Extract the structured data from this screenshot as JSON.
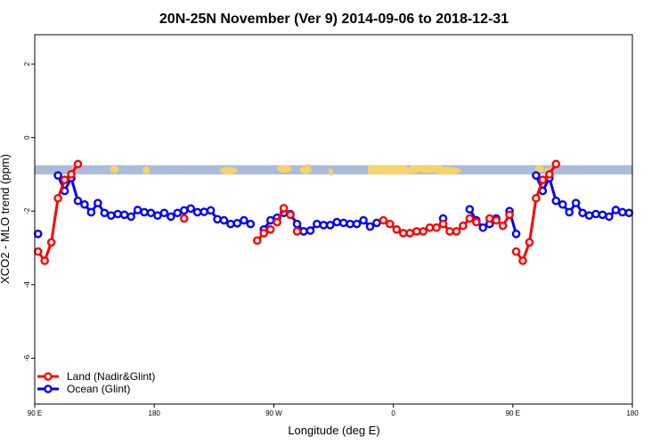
{
  "chart_data": {
    "type": "line",
    "title": "20N-25N November (Ver 9)   2014-09-06 to 2018-12-31",
    "xlabel": "Longitude (deg E)",
    "ylabel": "XCO2 - MLO trend (ppm)",
    "xlim": [
      90,
      540
    ],
    "ylim": [
      -7.25,
      2.8
    ],
    "x_ticks": [
      {
        "value": 90,
        "label": "90 E"
      },
      {
        "value": 180,
        "label": "180"
      },
      {
        "value": 270,
        "label": "90 W"
      },
      {
        "value": 360,
        "label": "0"
      },
      {
        "value": 450,
        "label": "90 E"
      },
      {
        "value": 540,
        "label": "180"
      }
    ],
    "y_ticks": [
      {
        "value": 2,
        "label": "2"
      },
      {
        "value": 0,
        "label": "0"
      },
      {
        "value": -2,
        "label": "-2"
      },
      {
        "value": -4,
        "label": "-4"
      },
      {
        "value": -6,
        "label": "-6"
      }
    ],
    "map_band": {
      "ymin": -1.0,
      "ymax": -0.75,
      "ocean_color": "#a9bcd9",
      "land_color": "#f6d36b"
    },
    "legend_position": "bottom-left",
    "series": [
      {
        "name": "Land (Nadir&Glint)",
        "color": "#ff0000",
        "segments": [
          [
            [
              92.5,
              -3.1
            ],
            [
              97.5,
              -3.35
            ],
            [
              102.5,
              -2.85
            ],
            [
              107.5,
              -1.65
            ],
            [
              112.5,
              -1.15
            ],
            [
              117.5,
              -1.0
            ],
            [
              122.5,
              -0.72
            ]
          ],
          [
            [
              202.5,
              -2.2
            ]
          ],
          [
            [
              257.5,
              -2.8
            ],
            [
              262.5,
              -2.6
            ],
            [
              267.5,
              -2.5
            ]
          ],
          [
            [
              272.5,
              -2.3
            ],
            [
              277.5,
              -1.92
            ],
            [
              282.5,
              -2.1
            ]
          ],
          [
            [
              287.5,
              -2.55
            ]
          ],
          [
            [
              352.5,
              -2.25
            ],
            [
              357.5,
              -2.35
            ],
            [
              362.5,
              -2.5
            ],
            [
              367.5,
              -2.6
            ],
            [
              372.5,
              -2.6
            ],
            [
              377.5,
              -2.55
            ],
            [
              382.5,
              -2.55
            ],
            [
              387.5,
              -2.45
            ],
            [
              392.5,
              -2.45
            ],
            [
              397.5,
              -2.35
            ],
            [
              402.5,
              -2.55
            ],
            [
              407.5,
              -2.55
            ],
            [
              412.5,
              -2.4
            ],
            [
              417.5,
              -2.2
            ]
          ],
          [
            [
              422.5,
              -2.3
            ]
          ],
          [
            [
              432.5,
              -2.2
            ],
            [
              437.5,
              -2.25
            ],
            [
              442.5,
              -2.4
            ],
            [
              447.5,
              -2.1
            ]
          ],
          [
            [
              452.5,
              -3.1
            ],
            [
              457.5,
              -3.35
            ],
            [
              462.5,
              -2.85
            ],
            [
              467.5,
              -1.65
            ],
            [
              472.5,
              -1.15
            ],
            [
              477.5,
              -1.0
            ],
            [
              482.5,
              -0.72
            ]
          ]
        ]
      },
      {
        "name": "Ocean (Glint)",
        "color": "#0000ff",
        "segments": [
          [
            [
              92.5,
              -2.62
            ]
          ],
          [
            [
              107.5,
              -1.03
            ],
            [
              112.5,
              -1.45
            ],
            [
              117.5,
              -1.1
            ],
            [
              122.5,
              -1.72
            ],
            [
              127.5,
              -1.82
            ],
            [
              132.5,
              -2.03
            ],
            [
              137.5,
              -1.78
            ],
            [
              142.5,
              -2.05
            ],
            [
              147.5,
              -2.12
            ],
            [
              152.5,
              -2.08
            ],
            [
              157.5,
              -2.1
            ],
            [
              162.5,
              -2.15
            ],
            [
              167.5,
              -1.97
            ],
            [
              172.5,
              -2.03
            ],
            [
              177.5,
              -2.05
            ],
            [
              182.5,
              -2.12
            ],
            [
              187.5,
              -2.05
            ],
            [
              192.5,
              -2.15
            ],
            [
              197.5,
              -2.05
            ],
            [
              202.5,
              -1.98
            ],
            [
              207.5,
              -1.93
            ],
            [
              212.5,
              -2.03
            ],
            [
              217.5,
              -2.02
            ],
            [
              222.5,
              -1.98
            ],
            [
              227.5,
              -2.22
            ],
            [
              232.5,
              -2.25
            ],
            [
              237.5,
              -2.35
            ],
            [
              242.5,
              -2.33
            ],
            [
              247.5,
              -2.25
            ],
            [
              252.5,
              -2.35
            ]
          ],
          [
            [
              262.5,
              -2.5
            ],
            [
              267.5,
              -2.25
            ],
            [
              272.5,
              -2.18
            ],
            [
              277.5,
              -2.05
            ],
            [
              282.5,
              -2.08
            ],
            [
              287.5,
              -2.35
            ],
            [
              292.5,
              -2.55
            ],
            [
              297.5,
              -2.53
            ],
            [
              302.5,
              -2.35
            ],
            [
              307.5,
              -2.38
            ],
            [
              312.5,
              -2.38
            ],
            [
              317.5,
              -2.3
            ],
            [
              322.5,
              -2.32
            ],
            [
              327.5,
              -2.35
            ],
            [
              332.5,
              -2.35
            ],
            [
              337.5,
              -2.25
            ],
            [
              342.5,
              -2.42
            ],
            [
              347.5,
              -2.32
            ]
          ],
          [
            [
              397.5,
              -2.2
            ]
          ],
          [
            [
              417.5,
              -1.95
            ],
            [
              422.5,
              -2.25
            ],
            [
              427.5,
              -2.45
            ],
            [
              432.5,
              -2.35
            ],
            [
              437.5,
              -2.2
            ]
          ],
          [
            [
              447.5,
              -2.0
            ],
            [
              452.5,
              -2.62
            ]
          ],
          [
            [
              467.5,
              -1.03
            ],
            [
              472.5,
              -1.45
            ],
            [
              477.5,
              -1.1
            ],
            [
              482.5,
              -1.72
            ],
            [
              487.5,
              -1.82
            ],
            [
              492.5,
              -2.03
            ],
            [
              497.5,
              -1.78
            ],
            [
              502.5,
              -2.05
            ],
            [
              507.5,
              -2.12
            ],
            [
              512.5,
              -2.08
            ],
            [
              517.5,
              -2.1
            ],
            [
              522.5,
              -2.15
            ],
            [
              527.5,
              -1.97
            ],
            [
              532.5,
              -2.03
            ],
            [
              537.5,
              -2.05
            ]
          ]
        ]
      }
    ]
  }
}
